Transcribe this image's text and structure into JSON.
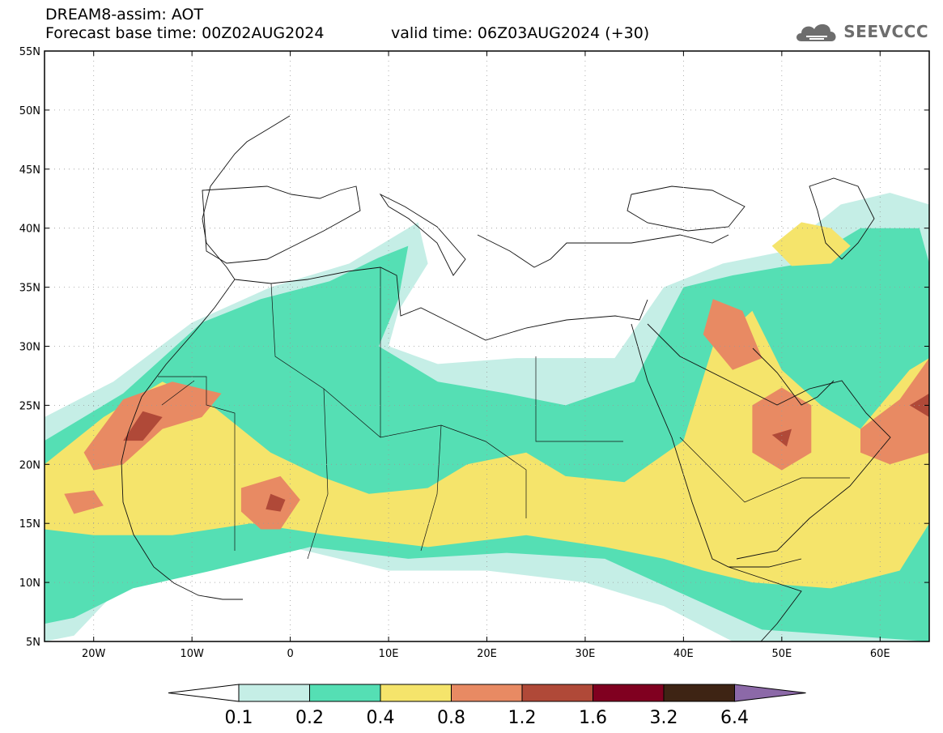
{
  "header": {
    "title": "DREAM8-assim: AOT",
    "base_time": "Forecast base time: 00Z02AUG2024",
    "valid_time": "valid time: 06Z03AUG2024 (+30)"
  },
  "logo": {
    "text": "SEEVCCC",
    "icon": "cloud-icon"
  },
  "map": {
    "extent": {
      "lon_min": -25,
      "lon_max": 65,
      "lat_min": 5,
      "lat_max": 55
    },
    "lat_ticks": [
      {
        "value": 55,
        "label": "55N"
      },
      {
        "value": 50,
        "label": "50N"
      },
      {
        "value": 45,
        "label": "45N"
      },
      {
        "value": 40,
        "label": "40N"
      },
      {
        "value": 35,
        "label": "35N"
      },
      {
        "value": 30,
        "label": "30N"
      },
      {
        "value": 25,
        "label": "25N"
      },
      {
        "value": 20,
        "label": "20N"
      },
      {
        "value": 15,
        "label": "15N"
      },
      {
        "value": 10,
        "label": "10N"
      },
      {
        "value": 5,
        "label": "5N"
      }
    ],
    "lon_ticks": [
      {
        "value": -20,
        "label": "20W"
      },
      {
        "value": -10,
        "label": "10W"
      },
      {
        "value": 0,
        "label": "0"
      },
      {
        "value": 10,
        "label": "10E"
      },
      {
        "value": 20,
        "label": "20E"
      },
      {
        "value": 30,
        "label": "30E"
      },
      {
        "value": 40,
        "label": "40E"
      },
      {
        "value": 50,
        "label": "50E"
      },
      {
        "value": 60,
        "label": "60E"
      }
    ],
    "gridlines": "dotted"
  },
  "colorbar": {
    "levels": [
      "0.1",
      "0.2",
      "0.4",
      "0.8",
      "1.2",
      "1.6",
      "3.2",
      "6.4"
    ],
    "colors": [
      "#ffffff",
      "#c5eee6",
      "#55dfb4",
      "#f5e46b",
      "#e88a63",
      "#b04938",
      "#800020",
      "#3e2414",
      "#8c69a8"
    ]
  },
  "aot_regions": [
    {
      "level": 1,
      "pts": [
        [
          -25,
          24
        ],
        [
          -18,
          27
        ],
        [
          -10,
          32
        ],
        [
          -2,
          35
        ],
        [
          6,
          37
        ],
        [
          10,
          39
        ],
        [
          13,
          40.5
        ],
        [
          14,
          37
        ],
        [
          11,
          33
        ],
        [
          10,
          30
        ],
        [
          15,
          28.5
        ],
        [
          23,
          29
        ],
        [
          33,
          29
        ],
        [
          38,
          35
        ],
        [
          44,
          37
        ],
        [
          50,
          38
        ],
        [
          56,
          42
        ],
        [
          61,
          43
        ],
        [
          65,
          42
        ],
        [
          65,
          5
        ],
        [
          45,
          5
        ],
        [
          38,
          8
        ],
        [
          30,
          10
        ],
        [
          20,
          11
        ],
        [
          10,
          11
        ],
        [
          0,
          13
        ],
        [
          -10,
          12
        ],
        [
          -18,
          9
        ],
        [
          -22,
          5.5
        ],
        [
          -25,
          5
        ]
      ]
    },
    {
      "level": 2,
      "pts": [
        [
          -25,
          22
        ],
        [
          -17,
          26
        ],
        [
          -9,
          32
        ],
        [
          -3,
          34
        ],
        [
          4,
          35.5
        ],
        [
          9,
          37.5
        ],
        [
          12,
          38.5
        ],
        [
          11,
          34
        ],
        [
          9,
          30
        ],
        [
          15,
          27
        ],
        [
          22,
          26
        ],
        [
          28,
          25
        ],
        [
          35,
          27
        ],
        [
          40,
          35
        ],
        [
          45,
          36
        ],
        [
          52,
          37
        ],
        [
          58,
          40
        ],
        [
          64,
          40
        ],
        [
          65,
          37
        ],
        [
          65,
          5
        ],
        [
          48,
          6
        ],
        [
          40,
          9
        ],
        [
          32,
          12
        ],
        [
          22,
          12.5
        ],
        [
          12,
          12
        ],
        [
          2,
          13
        ],
        [
          -8,
          11
        ],
        [
          -16,
          9.5
        ],
        [
          -22,
          7
        ],
        [
          -25,
          6.5
        ]
      ]
    },
    {
      "level": 3,
      "pts": [
        [
          -25,
          20
        ],
        [
          -19,
          24
        ],
        [
          -13,
          27
        ],
        [
          -8,
          25
        ],
        [
          -2,
          21
        ],
        [
          3,
          19
        ],
        [
          8,
          17.5
        ],
        [
          14,
          18
        ],
        [
          18,
          20
        ],
        [
          24,
          21
        ],
        [
          28,
          19
        ],
        [
          34,
          18.5
        ],
        [
          40,
          22
        ],
        [
          43,
          30
        ],
        [
          47,
          33
        ],
        [
          50,
          28
        ],
        [
          54,
          25
        ],
        [
          58,
          23
        ],
        [
          63,
          28
        ],
        [
          65,
          29
        ],
        [
          65,
          15
        ],
        [
          62,
          11
        ],
        [
          55,
          9.5
        ],
        [
          47,
          10
        ],
        [
          42,
          11
        ],
        [
          38,
          12
        ],
        [
          32,
          13
        ],
        [
          24,
          14
        ],
        [
          14,
          13
        ],
        [
          4,
          14
        ],
        [
          -4,
          15
        ],
        [
          -12,
          14
        ],
        [
          -20,
          14
        ],
        [
          -25,
          14.5
        ]
      ]
    },
    {
      "level": 3,
      "pts": [
        [
          49,
          38.5
        ],
        [
          52,
          40.5
        ],
        [
          55,
          40
        ],
        [
          57,
          38.5
        ],
        [
          55,
          37
        ],
        [
          51,
          36.8
        ]
      ]
    },
    {
      "level": 4,
      "pts": [
        [
          -21,
          21
        ],
        [
          -17,
          25.5
        ],
        [
          -12,
          27
        ],
        [
          -7,
          26
        ],
        [
          -9,
          24
        ],
        [
          -13,
          23
        ],
        [
          -17,
          20
        ],
        [
          -20,
          19.5
        ]
      ]
    },
    {
      "level": 4,
      "pts": [
        [
          -5,
          18
        ],
        [
          -1,
          19
        ],
        [
          1,
          17
        ],
        [
          -1,
          14.5
        ],
        [
          -3,
          14.5
        ],
        [
          -5,
          16
        ]
      ]
    },
    {
      "level": 4,
      "pts": [
        [
          -23,
          17.5
        ],
        [
          -20,
          17.8
        ],
        [
          -19,
          16.5
        ],
        [
          -22,
          15.8
        ]
      ]
    },
    {
      "level": 4,
      "pts": [
        [
          43,
          34
        ],
        [
          46,
          33
        ],
        [
          48,
          29
        ],
        [
          45,
          28
        ],
        [
          42,
          31
        ]
      ]
    },
    {
      "level": 4,
      "pts": [
        [
          47,
          25
        ],
        [
          50,
          26.5
        ],
        [
          53,
          25
        ],
        [
          53,
          21
        ],
        [
          50,
          19.5
        ],
        [
          47,
          21
        ]
      ]
    },
    {
      "level": 4,
      "pts": [
        [
          58,
          23
        ],
        [
          62,
          25.5
        ],
        [
          65,
          29
        ],
        [
          65,
          21
        ],
        [
          61,
          20
        ],
        [
          58,
          21
        ]
      ]
    },
    {
      "level": 5,
      "pts": [
        [
          -17,
          22
        ],
        [
          -15,
          24.5
        ],
        [
          -13,
          24
        ],
        [
          -15,
          22
        ]
      ]
    },
    {
      "level": 5,
      "pts": [
        [
          -2,
          17.5
        ],
        [
          -0.5,
          17
        ],
        [
          -1,
          16
        ],
        [
          -2.5,
          16.2
        ]
      ]
    },
    {
      "level": 5,
      "pts": [
        [
          49,
          22.5
        ],
        [
          51,
          23
        ],
        [
          50.5,
          21.5
        ]
      ]
    },
    {
      "level": 5,
      "pts": [
        [
          63,
          25
        ],
        [
          65,
          26
        ],
        [
          65,
          24
        ]
      ]
    }
  ]
}
